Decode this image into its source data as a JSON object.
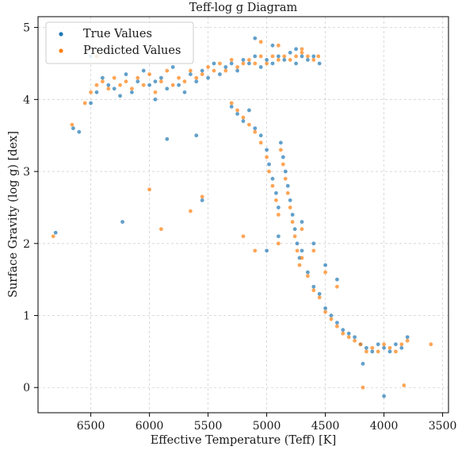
{
  "chart_data": {
    "type": "scatter",
    "title": "Teff-log g Diagram",
    "xlabel": "Effective Temperature (Teff) [K]",
    "ylabel": "Surface Gravity (log g) [dex]",
    "xlim": [
      6950,
      3450
    ],
    "ylim": [
      5.15,
      -0.35
    ],
    "x_inverted": true,
    "y_inverted": true,
    "x_ticks": [
      6500,
      6000,
      5500,
      5000,
      4500,
      4000,
      3500
    ],
    "y_ticks": [
      0,
      1,
      2,
      3,
      4,
      5
    ],
    "grid": true,
    "legend_position": "top-left",
    "series": [
      {
        "name": "True Values",
        "color": "#1f77b4",
        "points": [
          [
            6800,
            2.15
          ],
          [
            6650,
            3.6
          ],
          [
            6600,
            3.55
          ],
          [
            6500,
            3.95
          ],
          [
            6450,
            4.1
          ],
          [
            6400,
            4.3
          ],
          [
            6350,
            4.2
          ],
          [
            6300,
            4.15
          ],
          [
            6250,
            4.05
          ],
          [
            6200,
            4.35
          ],
          [
            6150,
            4.1
          ],
          [
            6100,
            4.25
          ],
          [
            6050,
            4.4
          ],
          [
            6000,
            4.2
          ],
          [
            5950,
            4.0
          ],
          [
            5900,
            4.3
          ],
          [
            5850,
            4.15
          ],
          [
            5800,
            4.45
          ],
          [
            5750,
            4.2
          ],
          [
            5700,
            4.1
          ],
          [
            5650,
            4.35
          ],
          [
            5600,
            4.25
          ],
          [
            5550,
            4.4
          ],
          [
            5500,
            4.3
          ],
          [
            5450,
            4.5
          ],
          [
            5400,
            4.35
          ],
          [
            5350,
            4.45
          ],
          [
            5300,
            4.5
          ],
          [
            5250,
            4.4
          ],
          [
            5200,
            4.55
          ],
          [
            5150,
            4.5
          ],
          [
            5100,
            4.6
          ],
          [
            5050,
            4.45
          ],
          [
            5000,
            4.55
          ],
          [
            4950,
            4.5
          ],
          [
            4900,
            4.6
          ],
          [
            4850,
            4.55
          ],
          [
            4800,
            4.65
          ],
          [
            4750,
            4.5
          ],
          [
            4700,
            4.6
          ],
          [
            4650,
            4.55
          ],
          [
            4600,
            4.6
          ],
          [
            4550,
            4.5
          ],
          [
            5300,
            3.9
          ],
          [
            5250,
            3.8
          ],
          [
            5200,
            3.7
          ],
          [
            5150,
            3.85
          ],
          [
            5100,
            3.6
          ],
          [
            5050,
            3.5
          ],
          [
            5000,
            3.3
          ],
          [
            4980,
            3.1
          ],
          [
            4950,
            2.9
          ],
          [
            4920,
            2.7
          ],
          [
            4900,
            2.5
          ],
          [
            4880,
            3.4
          ],
          [
            4860,
            3.2
          ],
          [
            4840,
            3.0
          ],
          [
            4820,
            2.8
          ],
          [
            4800,
            2.6
          ],
          [
            4780,
            2.4
          ],
          [
            4760,
            2.2
          ],
          [
            4740,
            2.0
          ],
          [
            4720,
            1.8
          ],
          [
            4700,
            1.9
          ],
          [
            4650,
            1.6
          ],
          [
            4600,
            1.4
          ],
          [
            4550,
            1.3
          ],
          [
            4500,
            1.1
          ],
          [
            4450,
            1.0
          ],
          [
            4400,
            0.9
          ],
          [
            4350,
            0.8
          ],
          [
            4300,
            0.75
          ],
          [
            4250,
            0.7
          ],
          [
            4200,
            0.6
          ],
          [
            4150,
            0.55
          ],
          [
            4100,
            0.5
          ],
          [
            4050,
            0.6
          ],
          [
            4000,
            0.55
          ],
          [
            3950,
            0.5
          ],
          [
            3900,
            0.6
          ],
          [
            3850,
            0.55
          ],
          [
            3800,
            0.7
          ],
          [
            4000,
            -0.12
          ],
          [
            4180,
            0.33
          ],
          [
            4700,
            2.3
          ],
          [
            4900,
            2.1
          ],
          [
            5000,
            1.9
          ],
          [
            4600,
            2.0
          ],
          [
            4500,
            1.7
          ],
          [
            4400,
            1.5
          ],
          [
            6230,
            2.3
          ],
          [
            5550,
            2.6
          ],
          [
            5600,
            3.5
          ],
          [
            5850,
            3.45
          ],
          [
            5100,
            4.85
          ],
          [
            4950,
            4.75
          ],
          [
            4750,
            4.7
          ],
          [
            6450,
            4.6
          ],
          [
            6500,
            4.6
          ],
          [
            5950,
            4.25
          ]
        ]
      },
      {
        "name": "Predicted Values",
        "color": "#ff7f0e",
        "points": [
          [
            6820,
            2.1
          ],
          [
            6660,
            3.65
          ],
          [
            6550,
            3.95
          ],
          [
            6500,
            4.1
          ],
          [
            6450,
            4.2
          ],
          [
            6400,
            4.25
          ],
          [
            6350,
            4.15
          ],
          [
            6300,
            4.3
          ],
          [
            6250,
            4.2
          ],
          [
            6200,
            4.25
          ],
          [
            6150,
            4.15
          ],
          [
            6100,
            4.3
          ],
          [
            6050,
            4.2
          ],
          [
            6000,
            4.35
          ],
          [
            5950,
            4.1
          ],
          [
            5900,
            4.25
          ],
          [
            5850,
            4.4
          ],
          [
            5800,
            4.2
          ],
          [
            5750,
            4.3
          ],
          [
            5700,
            4.25
          ],
          [
            5650,
            4.4
          ],
          [
            5600,
            4.3
          ],
          [
            5550,
            4.35
          ],
          [
            5500,
            4.45
          ],
          [
            5450,
            4.4
          ],
          [
            5400,
            4.5
          ],
          [
            5350,
            4.4
          ],
          [
            5300,
            4.55
          ],
          [
            5250,
            4.45
          ],
          [
            5200,
            4.5
          ],
          [
            5150,
            4.55
          ],
          [
            5100,
            4.5
          ],
          [
            5050,
            4.6
          ],
          [
            5000,
            4.5
          ],
          [
            4950,
            4.6
          ],
          [
            4900,
            4.55
          ],
          [
            4850,
            4.6
          ],
          [
            4800,
            4.55
          ],
          [
            4750,
            4.6
          ],
          [
            4700,
            4.65
          ],
          [
            4650,
            4.6
          ],
          [
            4600,
            4.55
          ],
          [
            4560,
            4.6
          ],
          [
            5300,
            3.95
          ],
          [
            5250,
            3.85
          ],
          [
            5200,
            3.75
          ],
          [
            5150,
            3.65
          ],
          [
            5100,
            3.55
          ],
          [
            5050,
            3.4
          ],
          [
            5000,
            3.2
          ],
          [
            4980,
            3.0
          ],
          [
            4950,
            2.8
          ],
          [
            4920,
            2.6
          ],
          [
            4900,
            2.4
          ],
          [
            4880,
            3.3
          ],
          [
            4860,
            3.1
          ],
          [
            4840,
            2.9
          ],
          [
            4820,
            2.7
          ],
          [
            4800,
            2.5
          ],
          [
            4780,
            2.3
          ],
          [
            4760,
            2.1
          ],
          [
            4740,
            1.9
          ],
          [
            4720,
            1.7
          ],
          [
            4700,
            1.8
          ],
          [
            4650,
            1.55
          ],
          [
            4600,
            1.35
          ],
          [
            4550,
            1.25
          ],
          [
            4500,
            1.05
          ],
          [
            4450,
            0.95
          ],
          [
            4400,
            0.85
          ],
          [
            4350,
            0.75
          ],
          [
            4300,
            0.7
          ],
          [
            4250,
            0.65
          ],
          [
            4200,
            0.6
          ],
          [
            4150,
            0.5
          ],
          [
            4100,
            0.55
          ],
          [
            4050,
            0.5
          ],
          [
            4000,
            0.6
          ],
          [
            3950,
            0.55
          ],
          [
            3900,
            0.5
          ],
          [
            3850,
            0.6
          ],
          [
            3800,
            0.65
          ],
          [
            3600,
            0.6
          ],
          [
            4180,
            0.0
          ],
          [
            3830,
            0.03
          ],
          [
            5900,
            2.2
          ],
          [
            6000,
            2.75
          ],
          [
            5550,
            2.65
          ],
          [
            5650,
            2.45
          ],
          [
            5200,
            2.1
          ],
          [
            4700,
            2.2
          ],
          [
            4900,
            2.0
          ],
          [
            5100,
            1.9
          ],
          [
            4600,
            1.9
          ],
          [
            4500,
            1.6
          ],
          [
            4400,
            1.4
          ],
          [
            5050,
            4.8
          ],
          [
            4900,
            4.75
          ],
          [
            4700,
            4.7
          ],
          [
            6450,
            4.6
          ]
        ]
      }
    ]
  }
}
